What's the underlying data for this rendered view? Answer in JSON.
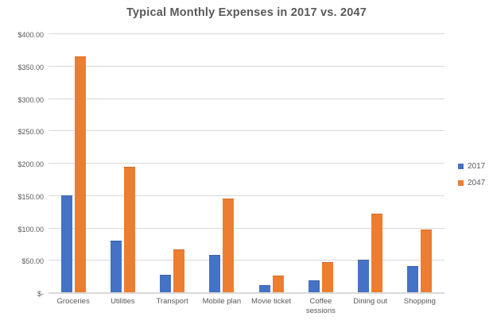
{
  "chart_data": {
    "type": "bar",
    "title": "Typical Monthly Expenses in 2017 vs. 2047",
    "categories": [
      "Groceries",
      "Utilities",
      "Transport",
      "Mobile plan",
      "Movie ticket",
      "Coffee sessions",
      "Dining out",
      "Shopping"
    ],
    "series": [
      {
        "name": "2017",
        "color": "#4472c4",
        "values": [
          150,
          80,
          27,
          58,
          10.5,
          18,
          50,
          40
        ]
      },
      {
        "name": "2047",
        "color": "#ed7d31",
        "values": [
          364,
          194,
          66,
          145,
          26,
          47,
          121,
          97
        ]
      }
    ],
    "xlabel": "",
    "ylabel": "",
    "ylim": [
      0,
      400
    ],
    "ytick_step": 50,
    "ytick_labels": [
      "$-",
      "$50.00",
      "$100.00",
      "$150.00",
      "$200.00",
      "$250.00",
      "$300.00",
      "$350.00",
      "$400.00"
    ],
    "grid": true,
    "legend_position": "right",
    "colors": {
      "title_text": "#595959",
      "axis_text": "#595959",
      "gridline": "#d9d9d9",
      "background": "#ffffff"
    }
  }
}
